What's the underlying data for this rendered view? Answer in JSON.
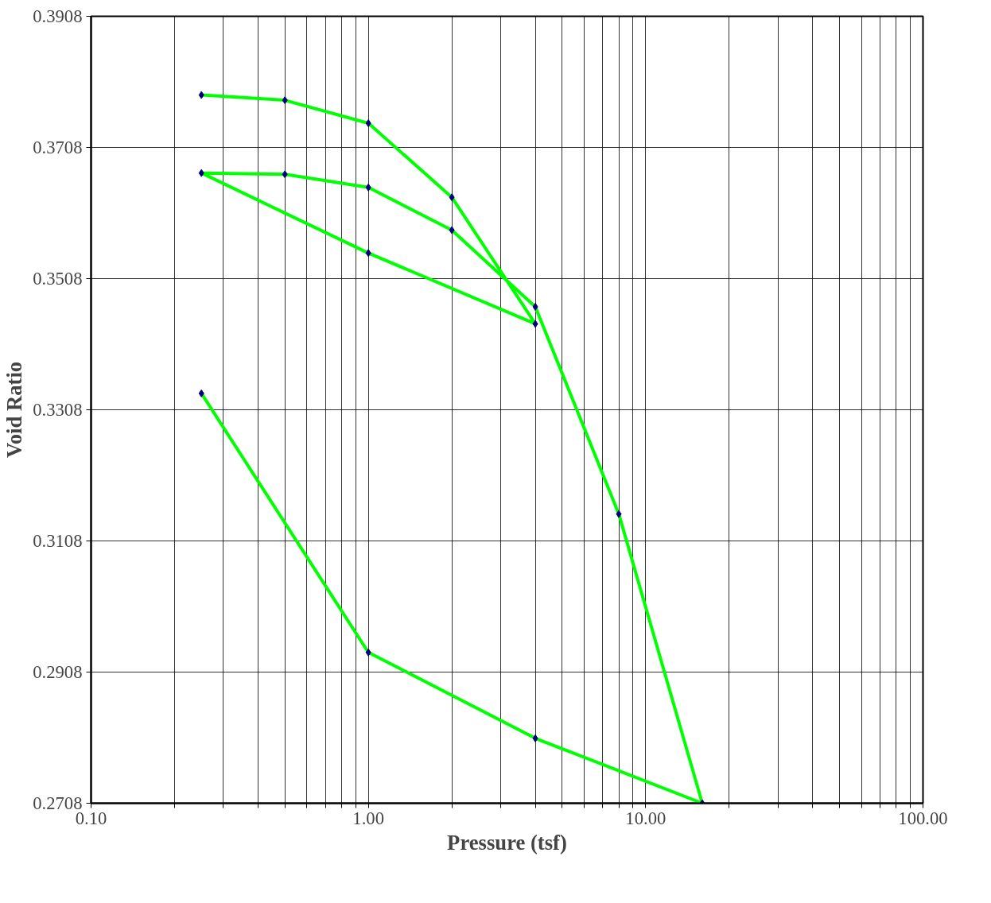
{
  "chart_data": {
    "type": "line",
    "xlabel": "Pressure (tsf)",
    "ylabel": "Void Ratio",
    "log": "x",
    "grid": true,
    "marker": "diamond",
    "line_style": "solid",
    "x": [
      0.25,
      0.5,
      1,
      2,
      4,
      1,
      0.25,
      0.5,
      1,
      2,
      4,
      8,
      16,
      4,
      1,
      0.25
    ],
    "series": [
      {
        "color": "#00ff00",
        "values": [
          0.3788,
          0.378,
          0.3745,
          0.3632,
          0.3439,
          0.3547,
          0.3669,
          0.3667,
          0.3647,
          0.3582,
          0.3465,
          0.3149,
          0.2708,
          0.2807,
          0.2938,
          0.3333
        ]
      }
    ],
    "xlim": [
      0.1,
      100
    ],
    "ylim": [
      0.2708,
      0.3908
    ],
    "xticks": [
      {
        "value": 0.1,
        "label": "0.10"
      },
      {
        "value": 0.2,
        "label": null
      },
      {
        "value": 0.3,
        "label": null
      },
      {
        "value": 0.4,
        "label": null
      },
      {
        "value": 0.5,
        "label": null
      },
      {
        "value": 0.6,
        "label": null
      },
      {
        "value": 0.7,
        "label": null
      },
      {
        "value": 0.8,
        "label": null
      },
      {
        "value": 0.9,
        "label": null
      },
      {
        "value": 1,
        "label": "1.00"
      },
      {
        "value": 2,
        "label": null
      },
      {
        "value": 3,
        "label": null
      },
      {
        "value": 4,
        "label": null
      },
      {
        "value": 5,
        "label": null
      },
      {
        "value": 6,
        "label": null
      },
      {
        "value": 7,
        "label": null
      },
      {
        "value": 8,
        "label": null
      },
      {
        "value": 9,
        "label": null
      },
      {
        "value": 10,
        "label": "10.00"
      },
      {
        "value": 20,
        "label": null
      },
      {
        "value": 30,
        "label": null
      },
      {
        "value": 40,
        "label": null
      },
      {
        "value": 50,
        "label": null
      },
      {
        "value": 60,
        "label": null
      },
      {
        "value": 70,
        "label": null
      },
      {
        "value": 80,
        "label": null
      },
      {
        "value": 90,
        "label": null
      },
      {
        "value": 100,
        "label": "100.00"
      }
    ],
    "yticks": [
      0.2708,
      0.2908,
      0.3108,
      0.3308,
      0.3508,
      0.3708,
      0.3908
    ]
  }
}
